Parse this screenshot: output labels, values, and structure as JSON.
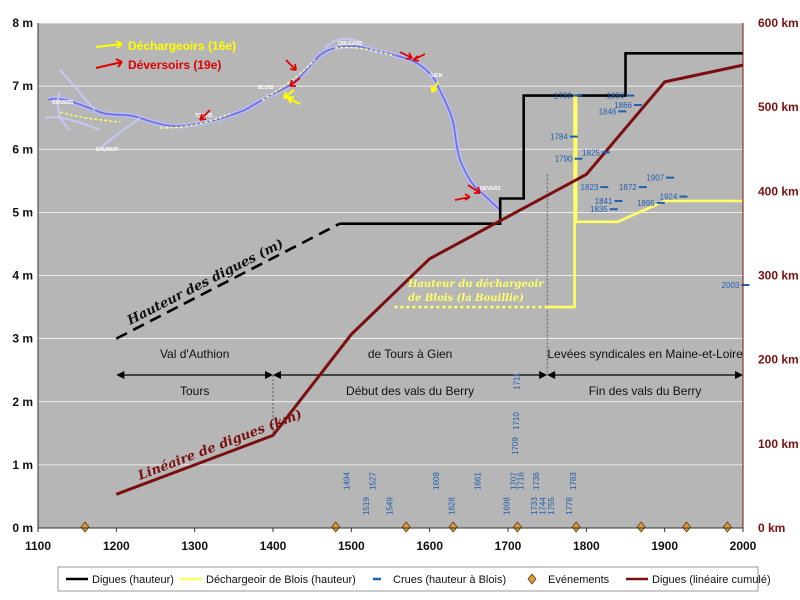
{
  "chart_data": {
    "type": "line",
    "x_axis": {
      "ticks": [
        "1100",
        "1200",
        "1300",
        "1400",
        "1500",
        "1600",
        "1700",
        "1800",
        "1900",
        "2000"
      ],
      "range": [
        1100,
        2000
      ]
    },
    "y_left": {
      "ticks": [
        "0 m",
        "1 m",
        "2 m",
        "3 m",
        "4 m",
        "5 m",
        "6 m",
        "7 m",
        "8 m"
      ],
      "range": [
        0,
        8
      ],
      "unit": "m"
    },
    "y_right": {
      "ticks": [
        "0 km",
        "100 km",
        "200 km",
        "300 km",
        "400 km",
        "500 km",
        "600 km"
      ],
      "range": [
        0,
        600
      ],
      "unit": "km"
    },
    "grid": "horizontal",
    "plot_background": "#b6b6b6",
    "series": [
      {
        "name": "Digues (hauteur)",
        "axis": "left",
        "color": "#000000",
        "style": "dashed",
        "points": [
          [
            1200,
            3.0
          ],
          [
            1485,
            4.82
          ]
        ]
      },
      {
        "name": "Digues (hauteur)",
        "axis": "left",
        "color": "#000000",
        "style": "solid",
        "points": [
          [
            1485,
            4.82
          ],
          [
            1690,
            4.82
          ],
          [
            1690,
            5.22
          ],
          [
            1720,
            5.22
          ],
          [
            1720,
            6.85
          ],
          [
            1850,
            6.85
          ],
          [
            1850,
            7.52
          ],
          [
            2000,
            7.52
          ]
        ]
      },
      {
        "name": "Déchargeoir de Blois (hauteur)",
        "axis": "left",
        "color": "#ffff66",
        "style": "dotted",
        "points": [
          [
            1555,
            3.5
          ],
          [
            1750,
            3.5
          ]
        ]
      },
      {
        "name": "Déchargeoir de Blois (hauteur)",
        "axis": "left",
        "color": "#ffff66",
        "style": "solid",
        "points": [
          [
            1750,
            3.5
          ],
          [
            1785,
            3.5
          ],
          [
            1785,
            6.85
          ],
          [
            1787,
            6.85
          ],
          [
            1787,
            4.85
          ],
          [
            1840,
            4.85
          ],
          [
            1900,
            5.18
          ],
          [
            2000,
            5.18
          ]
        ]
      },
      {
        "name": "Digues (linéaire cumulé)",
        "axis": "right",
        "color": "#7a0f0f",
        "style": "solid",
        "points": [
          [
            1200,
            40
          ],
          [
            1300,
            75
          ],
          [
            1400,
            110
          ],
          [
            1500,
            230
          ],
          [
            1600,
            320
          ],
          [
            1700,
            370
          ],
          [
            1800,
            420
          ],
          [
            1900,
            530
          ],
          [
            2000,
            550
          ]
        ]
      }
    ],
    "floods": [
      {
        "year": "1789",
        "x": 1789,
        "y": 6.85
      },
      {
        "year": "1856",
        "x": 1856,
        "y": 6.85
      },
      {
        "year": "1866",
        "x": 1866,
        "y": 6.7
      },
      {
        "year": "1846",
        "x": 1846,
        "y": 6.6
      },
      {
        "year": "1784",
        "x": 1784,
        "y": 6.2
      },
      {
        "year": "1825",
        "x": 1825,
        "y": 5.95
      },
      {
        "year": "1790",
        "x": 1790,
        "y": 5.85
      },
      {
        "year": "1907",
        "x": 1907,
        "y": 5.55
      },
      {
        "year": "1872",
        "x": 1872,
        "y": 5.4
      },
      {
        "year": "1823",
        "x": 1823,
        "y": 5.4
      },
      {
        "year": "1841",
        "x": 1841,
        "y": 5.18
      },
      {
        "year": "1924",
        "x": 1924,
        "y": 5.25
      },
      {
        "year": "1895",
        "x": 1895,
        "y": 5.15
      },
      {
        "year": "1835",
        "x": 1835,
        "y": 5.05
      },
      {
        "year": "2003",
        "x": 2003,
        "y": 3.85
      }
    ],
    "event_years": [
      "1494",
      "1519",
      "1527",
      "1549",
      "1608",
      "1628",
      "1661",
      "1698",
      "1707",
      "1716",
      "1709",
      "1710",
      "1711",
      "1733",
      "1736",
      "1744",
      "1755",
      "1778",
      "1783"
    ],
    "events": [
      1160,
      1480,
      1570,
      1630,
      1712,
      1787,
      1870,
      1928,
      1980
    ],
    "zones": {
      "upper": [
        {
          "label": "Val d'Authion",
          "from": 1200,
          "to": 1400
        },
        {
          "label": "de Tours à Gien",
          "from": 1400,
          "to": 1750
        },
        {
          "label": "Levées syndicales en Maine-et-Loire",
          "from": 1750,
          "to": 2000
        }
      ],
      "lower": [
        {
          "label": "Tours",
          "from": 1200,
          "to": 1400
        },
        {
          "label": "Début des vals du Berry",
          "from": 1400,
          "to": 1750
        },
        {
          "label": "Fin des vals du Berry",
          "from": 1750,
          "to": 2000
        }
      ]
    },
    "annotations": {
      "hauteur_digues": "Hauteur des digues (m)",
      "lineaire_digues": "Linéaire de digues (km)",
      "dechargeoir_line1": "Hauteur du déchargeoir",
      "dechargeoir_line2": "de Blois (la Bouillie)"
    },
    "map": {
      "key_yellow": "Déchargeoirs (16e)",
      "key_red": "Déversoirs (19e)",
      "places": [
        "ORLEANS",
        "BLOIS",
        "GIEN",
        "TOURS",
        "ANGERS",
        "SAUMUR",
        "NEVERS"
      ]
    },
    "legend": [
      {
        "label": "Digues (hauteur)",
        "kind": "line",
        "color": "#000000"
      },
      {
        "label": "Déchargeoir de Blois (hauteur)",
        "kind": "line",
        "color": "#ffff66"
      },
      {
        "label": "Crues (hauteur à Blois)",
        "kind": "dash",
        "color": "#1f5fb0"
      },
      {
        "label": "Evénements",
        "kind": "diamond",
        "color": "#e09a3a"
      },
      {
        "label": "Digues (linéaire cumulé)",
        "kind": "line",
        "color": "#7a0f0f"
      }
    ]
  }
}
